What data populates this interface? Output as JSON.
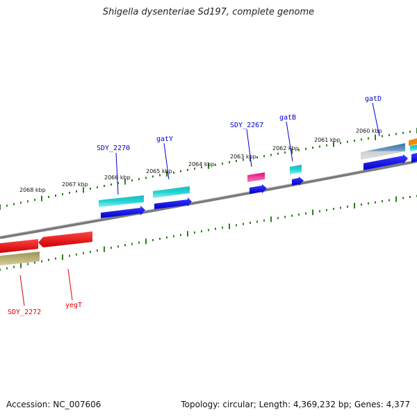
{
  "title": "Shigella dysenteriae Sd197, complete genome",
  "footer": {
    "accession": "Accession: NC_007606",
    "summary": "Topology: circular; Length: 4,369,232 bp; Genes: 4,377"
  },
  "ruler": {
    "ticks": [
      "2068 kbp",
      "2067 kbp",
      "2066 kbp",
      "2065 kbp",
      "2064 kbp",
      "2063 kbp",
      "2062 kbp",
      "2061 kbp",
      "2060 kbp"
    ]
  },
  "genes": {
    "forward_labels": [
      "SDY_2270",
      "gatY",
      "SDY_2267",
      "gatB",
      "gatD"
    ],
    "reverse_labels": [
      "SDY_2272",
      "yegT"
    ]
  },
  "colors": {
    "label_forward": "#0000cc",
    "label_reverse": "#dd0000",
    "tick": "#2e7d1e",
    "backbone": "#7a7a7a"
  }
}
